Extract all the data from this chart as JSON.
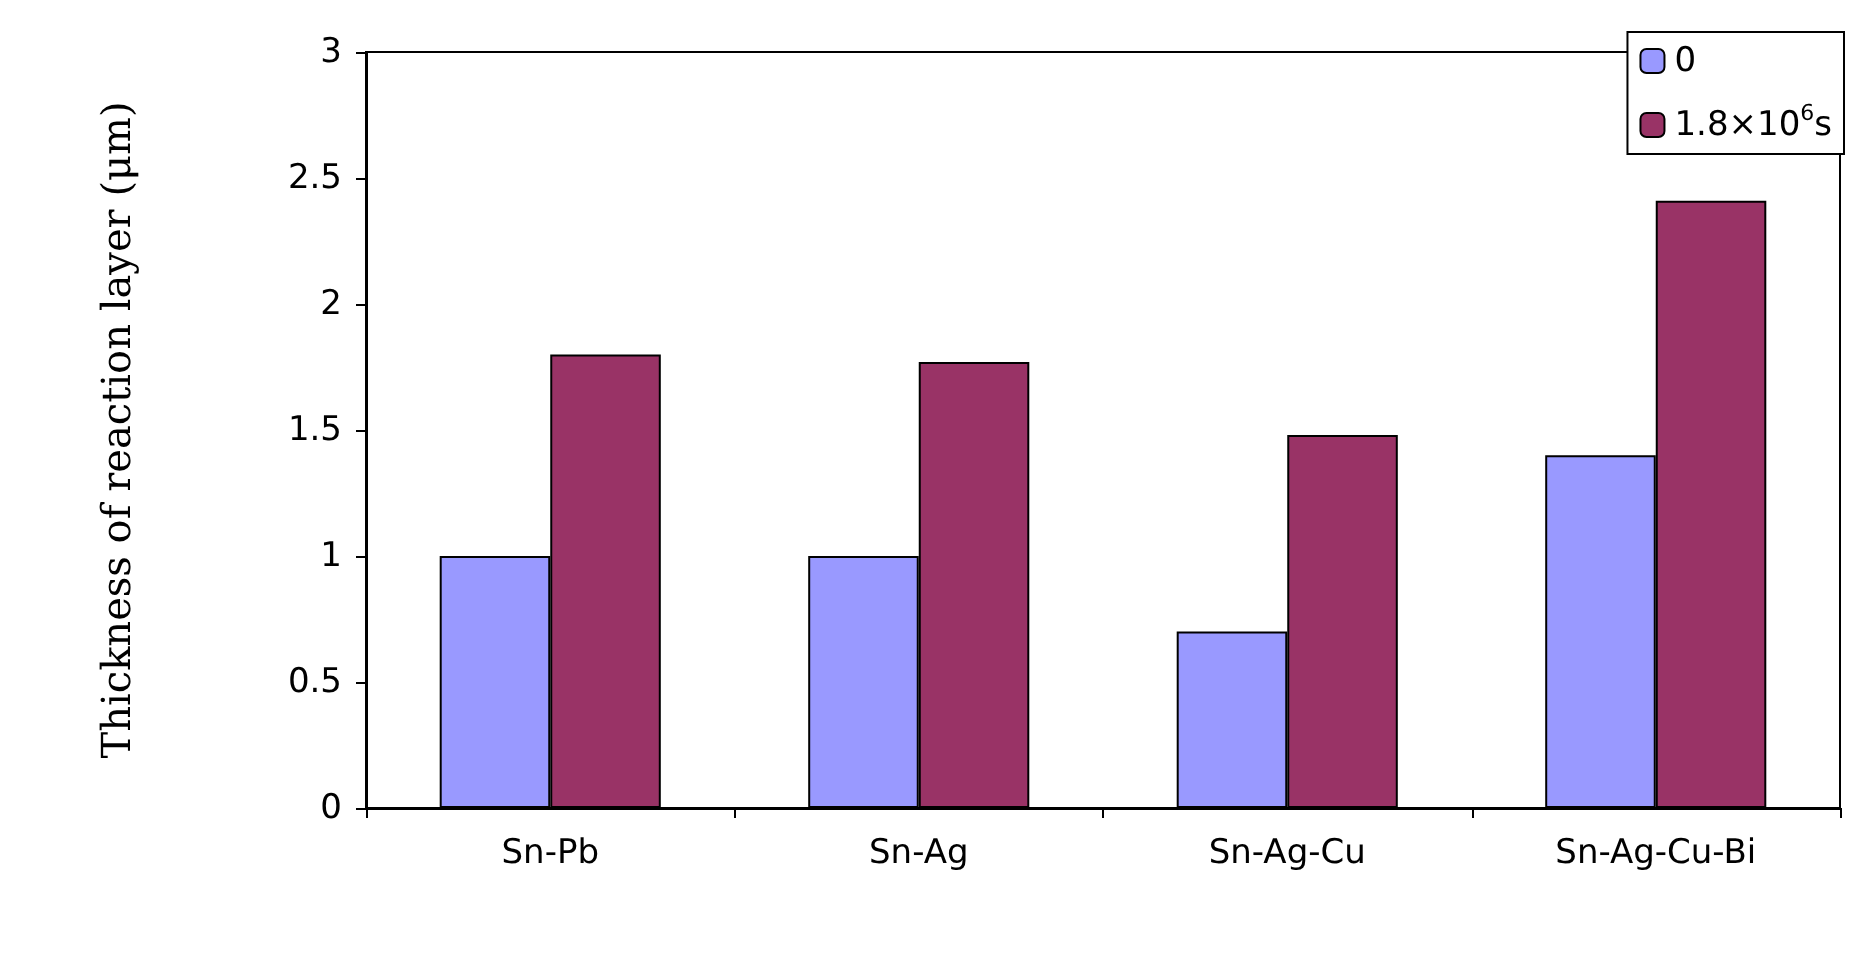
{
  "chart_data": {
    "type": "bar",
    "ylabel": "Thickness of reaction layer (μm)",
    "categories": [
      "Sn-Pb",
      "Sn-Ag",
      "Sn-Ag-Cu",
      "Sn-Ag-Cu-Bi"
    ],
    "series": [
      {
        "name": "0",
        "color": "#9999ff",
        "values": [
          1.0,
          1.0,
          0.7,
          1.4
        ]
      },
      {
        "name": "1.8×10$^{6}$s",
        "color": "#993366",
        "values": [
          1.8,
          1.77,
          1.48,
          2.41
        ]
      }
    ],
    "ylim": [
      0,
      3
    ],
    "yticks": [
      0,
      0.5,
      1,
      1.5,
      2,
      2.5,
      3
    ],
    "grid": false,
    "legend": "top right"
  }
}
